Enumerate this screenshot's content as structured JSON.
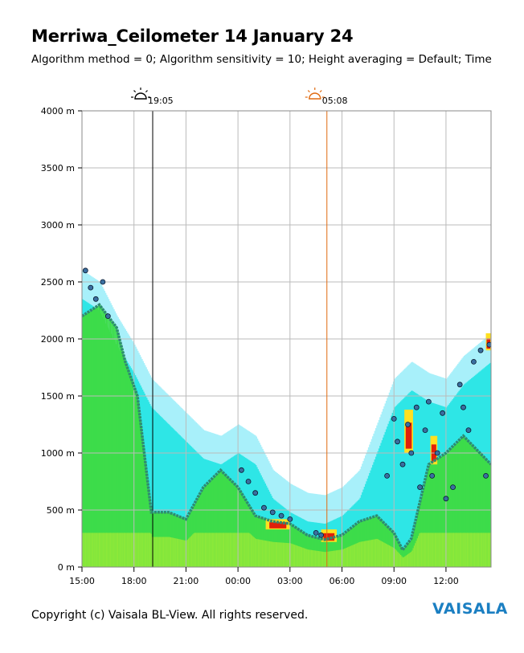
{
  "title": "Merriwa_Ceilometer 14 January 24",
  "subtitle": "Algorithm method = 0; Algorithm sensitivity = 10; Height averaging = Default; Time",
  "copyright": "Copyright (c) Vaisala BL-View. All rights reserved.",
  "logo": "VAISALA",
  "colors": {
    "sunset_marker": "#000000",
    "sunrise_marker": "#e06a10",
    "cloud_dot": "#3a6fa0",
    "boundary_layer": "#2e8b72",
    "grid": "#bbbbbb"
  },
  "chart_data": {
    "type": "heatmap",
    "title": "Merriwa_Ceilometer 14 January 24",
    "ylim": [
      0,
      4000
    ],
    "yticks": [
      "0 m",
      "500 m",
      "1000 m",
      "1500 m",
      "2000 m",
      "2500 m",
      "3000 m",
      "3500 m",
      "4000 m"
    ],
    "xticks": [
      "15:00",
      "18:00",
      "21:00",
      "00:00",
      "03:00",
      "06:00",
      "09:00",
      "12:00"
    ],
    "xlim_hours": [
      15,
      38.6
    ],
    "grid": "on",
    "sun_events": [
      {
        "label": "19:05",
        "icon": "sunset-icon",
        "time_hours": 19.08
      },
      {
        "label": "05:08",
        "icon": "sunrise-icon",
        "time_hours": 29.13
      }
    ],
    "aerosol_top_m": [
      [
        15.0,
        2350
      ],
      [
        16.0,
        2250
      ],
      [
        17.0,
        1950
      ],
      [
        18.0,
        1700
      ],
      [
        19.0,
        1400
      ],
      [
        20.0,
        1250
      ],
      [
        21.0,
        1100
      ],
      [
        22.0,
        950
      ],
      [
        23.0,
        900
      ],
      [
        24.0,
        1000
      ],
      [
        25.0,
        900
      ],
      [
        26.0,
        600
      ],
      [
        27.0,
        480
      ],
      [
        28.0,
        400
      ],
      [
        29.0,
        380
      ],
      [
        30.0,
        450
      ],
      [
        31.0,
        600
      ],
      [
        32.0,
        1000
      ],
      [
        33.0,
        1400
      ],
      [
        34.0,
        1550
      ],
      [
        35.0,
        1450
      ],
      [
        36.0,
        1400
      ],
      [
        37.0,
        1600
      ],
      [
        38.6,
        1800
      ]
    ],
    "boundary_layer_m": [
      [
        15.0,
        2200
      ],
      [
        16.0,
        2300
      ],
      [
        17.0,
        2100
      ],
      [
        17.5,
        1800
      ],
      [
        18.2,
        1500
      ],
      [
        19.0,
        480
      ],
      [
        20.0,
        480
      ],
      [
        21.0,
        420
      ],
      [
        22.0,
        700
      ],
      [
        23.0,
        850
      ],
      [
        24.0,
        700
      ],
      [
        25.0,
        450
      ],
      [
        26.0,
        400
      ],
      [
        27.0,
        380
      ],
      [
        28.0,
        280
      ],
      [
        29.0,
        240
      ],
      [
        30.0,
        280
      ],
      [
        31.0,
        400
      ],
      [
        32.0,
        450
      ],
      [
        33.0,
        300
      ],
      [
        33.5,
        150
      ],
      [
        34.0,
        250
      ],
      [
        35.0,
        900
      ],
      [
        36.0,
        1000
      ],
      [
        37.0,
        1150
      ],
      [
        38.6,
        900
      ]
    ],
    "cloud_base_m": [
      [
        15.2,
        2600
      ],
      [
        15.5,
        2450
      ],
      [
        15.8,
        2350
      ],
      [
        16.2,
        2500
      ],
      [
        16.5,
        2200
      ],
      [
        24.2,
        850
      ],
      [
        24.6,
        750
      ],
      [
        25.0,
        650
      ],
      [
        25.5,
        520
      ],
      [
        26.0,
        480
      ],
      [
        26.5,
        450
      ],
      [
        27.0,
        420
      ],
      [
        28.5,
        300
      ],
      [
        28.8,
        280
      ],
      [
        32.6,
        800
      ],
      [
        33.0,
        1300
      ],
      [
        33.2,
        1100
      ],
      [
        33.5,
        900
      ],
      [
        33.8,
        1250
      ],
      [
        34.0,
        1000
      ],
      [
        34.3,
        1400
      ],
      [
        34.5,
        700
      ],
      [
        34.8,
        1200
      ],
      [
        35.0,
        1450
      ],
      [
        35.2,
        800
      ],
      [
        35.5,
        1000
      ],
      [
        35.8,
        1350
      ],
      [
        36.0,
        600
      ],
      [
        36.4,
        700
      ],
      [
        36.8,
        1600
      ],
      [
        37.0,
        1400
      ],
      [
        37.3,
        1200
      ],
      [
        37.6,
        1800
      ],
      [
        38.0,
        1900
      ],
      [
        38.3,
        800
      ],
      [
        38.5,
        1950
      ]
    ]
  }
}
